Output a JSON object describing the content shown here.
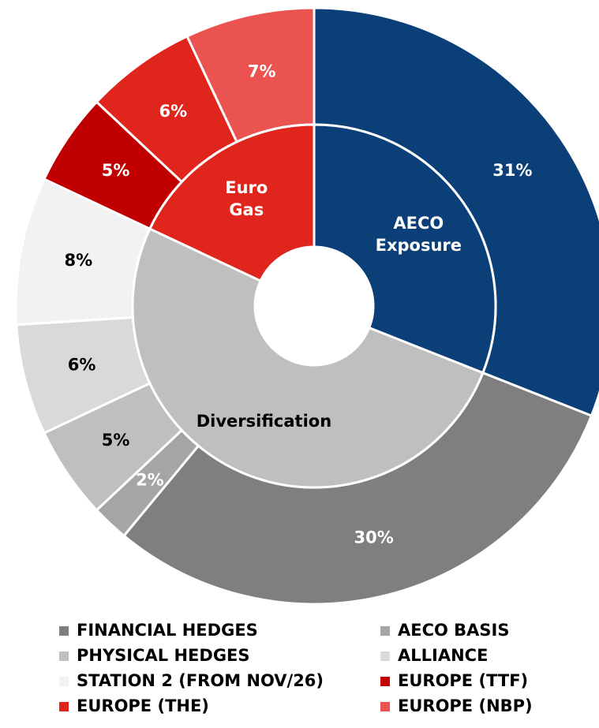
{
  "chart_data": {
    "type": "sunburst",
    "inner": {
      "categories": [
        "AECO Exposure",
        "Diversification",
        "Euro Gas"
      ],
      "values": [
        31,
        51,
        18
      ],
      "colors": [
        "#0b3f78",
        "#bfbfbf",
        "#e0251c"
      ]
    },
    "outer": {
      "categories": [
        null,
        "FINANCIAL HEDGES",
        "AECO BASIS",
        "PHYSICAL HEDGES",
        "ALLIANCE",
        "STATION 2 (FROM NOV/26)",
        "EUROPE (TTF)",
        "EUROPE (THE)",
        "EUROPE (NBP)"
      ],
      "values": [
        31,
        30,
        2,
        5,
        6,
        8,
        5,
        6,
        7
      ],
      "value_labels": [
        "31%",
        "30%",
        "2%",
        "5%",
        "6%",
        "8%",
        "5%",
        "6%",
        "7%"
      ],
      "colors": [
        "#0b3f78",
        "#7f7f7f",
        "#a5a5a5",
        "#bfbfbf",
        "#d9d9d9",
        "#f2f2f2",
        "#c00000",
        "#e0251c",
        "#ea5350"
      ]
    },
    "legend": "bottom"
  }
}
